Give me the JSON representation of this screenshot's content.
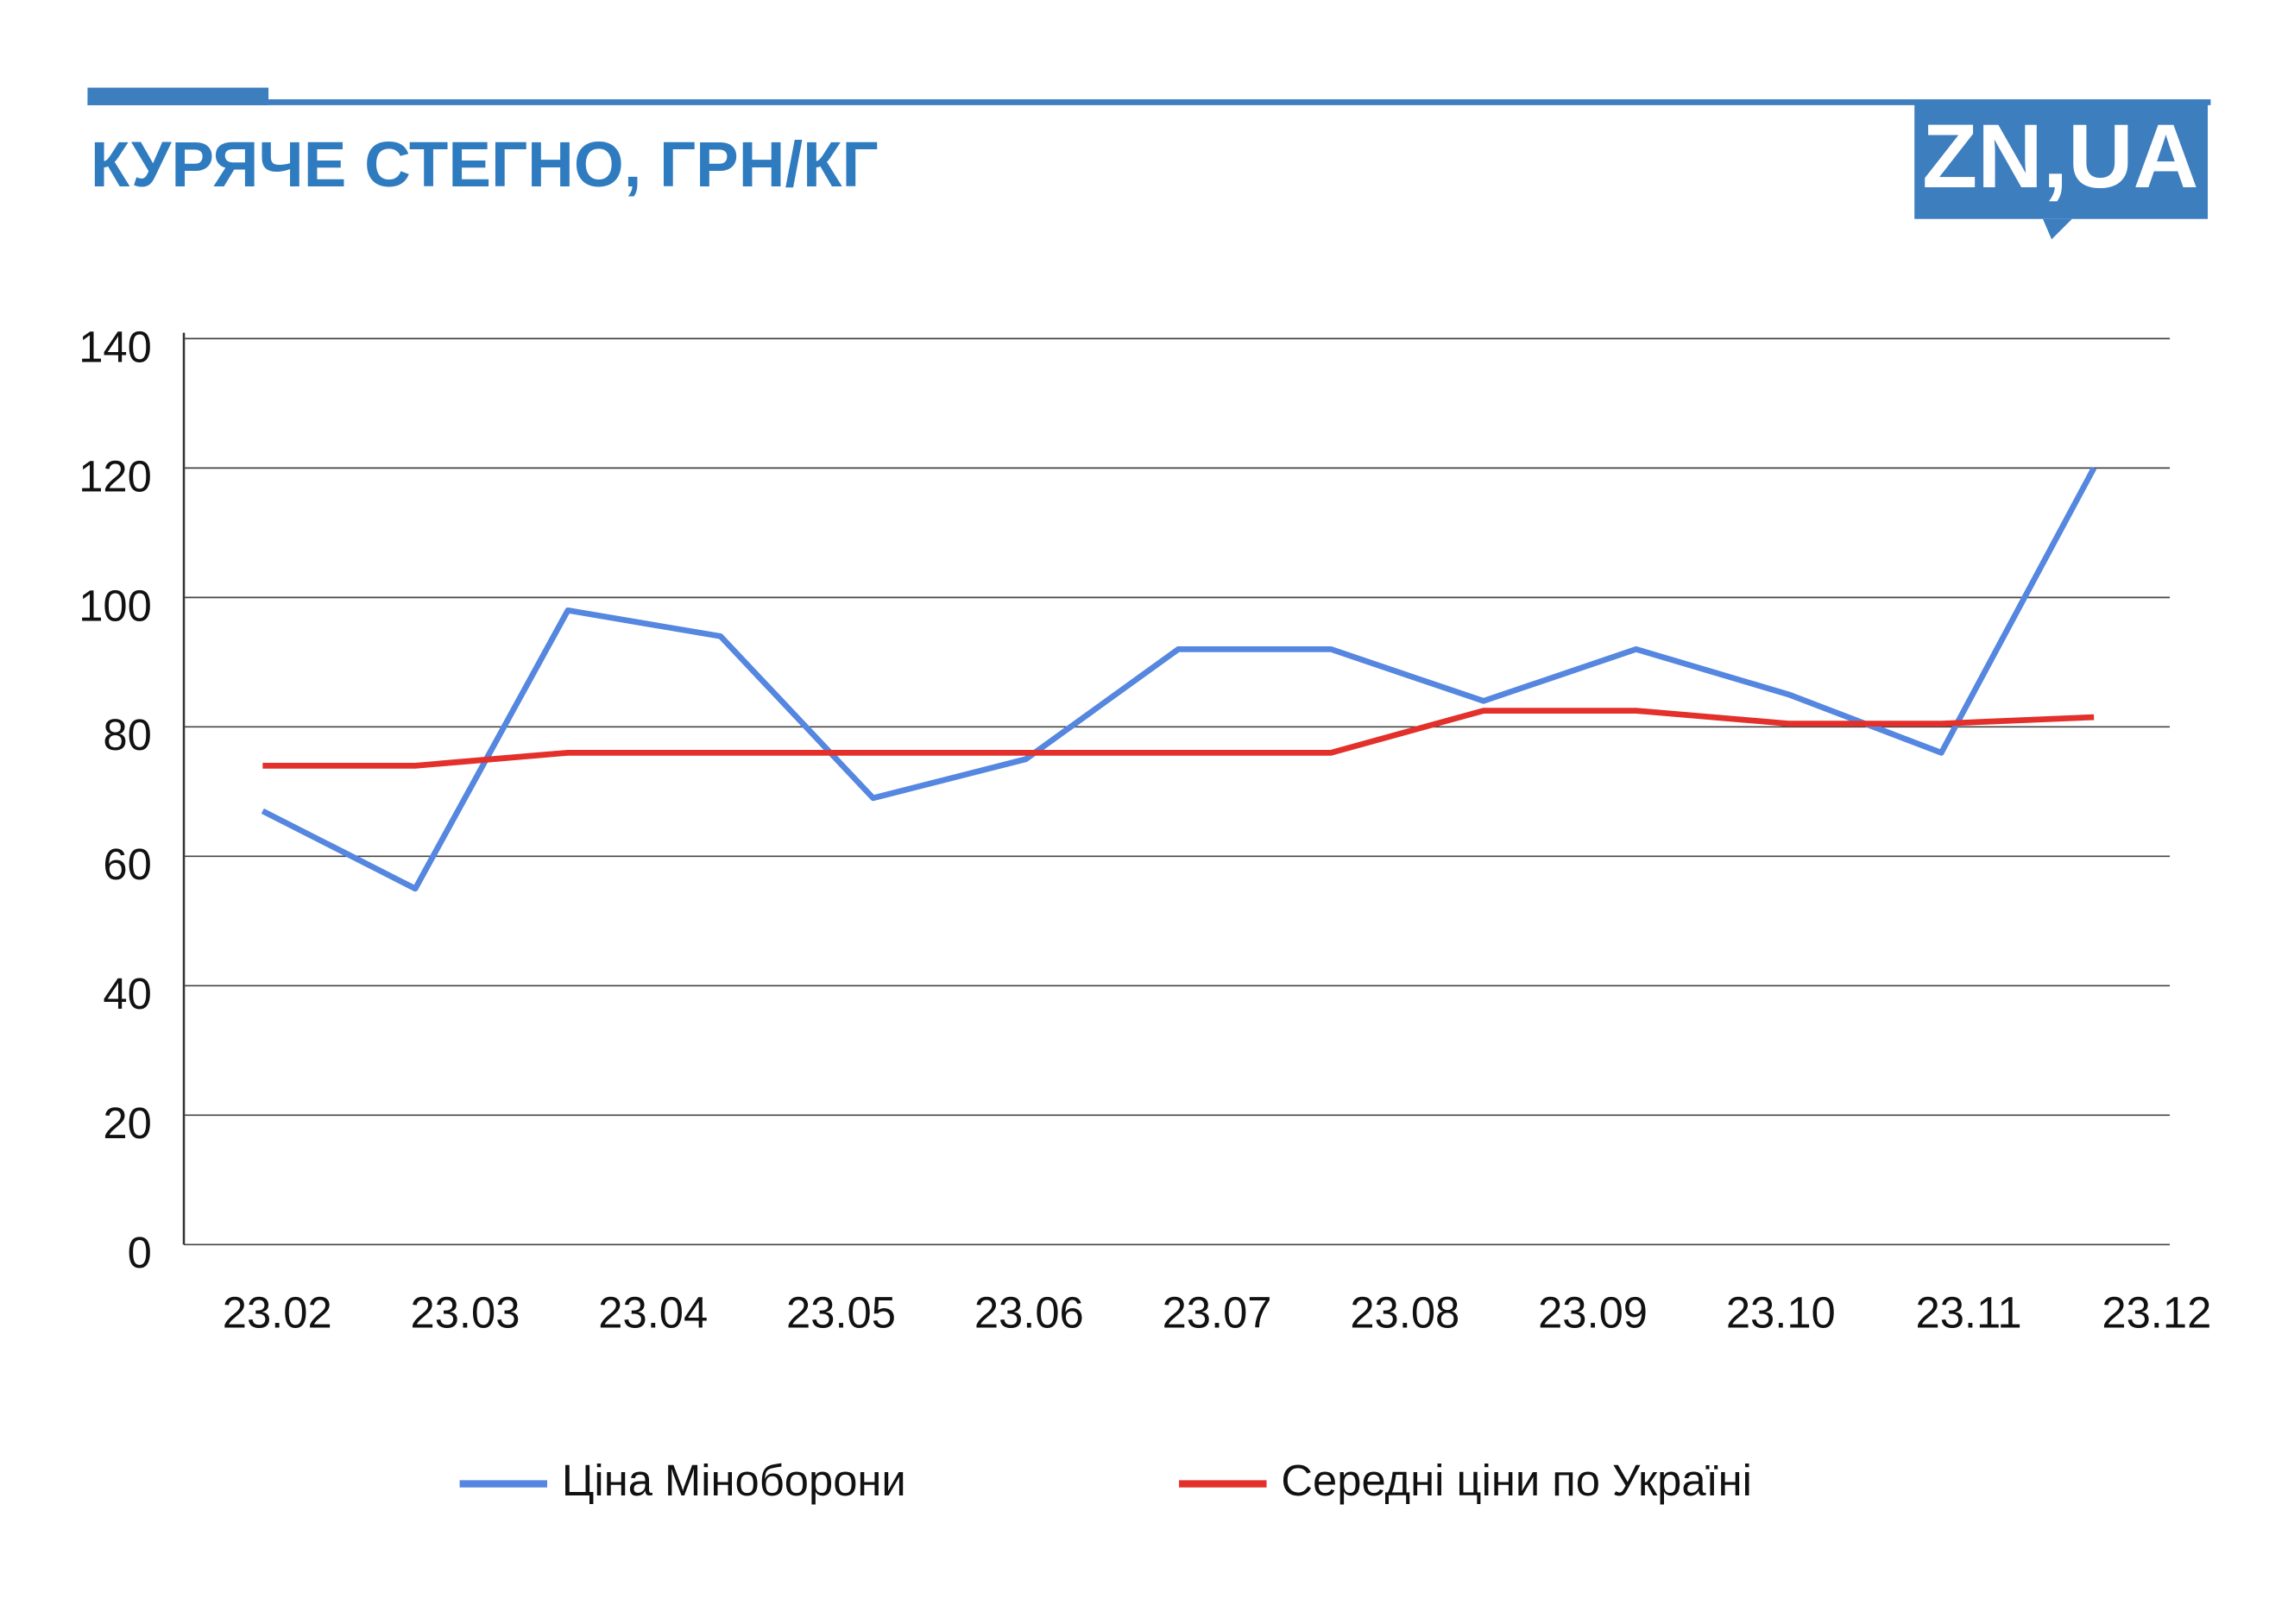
{
  "chart_data": {
    "type": "line",
    "title": "КУРЯЧЕ СТЕГНО, ГРН/КГ",
    "logo": "ZN,UA",
    "xticks": [
      "23.02",
      "23.03",
      "23.04",
      "23.05",
      "23.06",
      "23.07",
      "23.08",
      "23.09",
      "23.10",
      "23.11",
      "23.12"
    ],
    "series": [
      {
        "name": "Ціна Міноборони",
        "color": "#5586e0",
        "values": [
          67,
          55,
          98,
          94,
          69,
          75,
          92,
          92,
          84,
          92,
          85,
          76,
          120
        ]
      },
      {
        "name": "Середні ціни по Україні",
        "color": "#e3302a",
        "values": [
          74,
          74,
          76,
          76,
          76,
          76,
          76,
          76,
          82.5,
          82.5,
          80.5,
          80.5,
          81.5
        ]
      }
    ],
    "ylim": [
      0,
      140
    ],
    "yticks": [
      0,
      20,
      40,
      60,
      80,
      100,
      120,
      140
    ],
    "grid": true
  }
}
